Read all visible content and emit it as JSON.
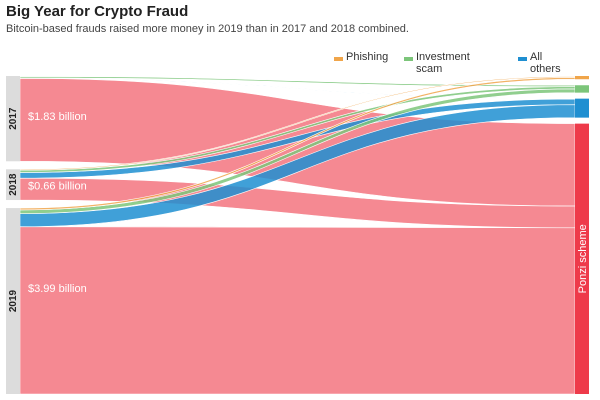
{
  "chart_data": {
    "type": "sankey",
    "title": "Big Year for Crypto Fraud",
    "subtitle": "Bitcoin-based frauds raised more money in 2019 than in 2017 and 2018 combined.",
    "unit": "billion",
    "sources": [
      {
        "name": "2017",
        "value_label": "$1.83 billion",
        "value": 1.83
      },
      {
        "name": "2018",
        "value_label": "$0.66 billion",
        "value": 0.66
      },
      {
        "name": "2019",
        "value_label": "$3.99 billion",
        "value": 3.99
      }
    ],
    "targets": [
      {
        "name": "Phishing",
        "color": "#f0a54a"
      },
      {
        "name": "Investment scam",
        "color": "#7cc57a"
      },
      {
        "name": "All others",
        "color": "#1f8fd1"
      },
      {
        "name": "Ponzi scheme",
        "color": "#ee3a4a"
      }
    ],
    "flows": [
      {
        "source": "2017",
        "target": "Phishing",
        "value": 0.01
      },
      {
        "source": "2017",
        "target": "Investment scam",
        "value": 0.03
      },
      {
        "source": "2017",
        "target": "Ponzi scheme",
        "value": 1.78
      },
      {
        "source": "2017",
        "target": "All others",
        "value": 0.01
      },
      {
        "source": "2018",
        "target": "Phishing",
        "value": 0.02
      },
      {
        "source": "2018",
        "target": "Investment scam",
        "value": 0.05
      },
      {
        "source": "2018",
        "target": "Ponzi scheme",
        "value": 0.47
      },
      {
        "source": "2018",
        "target": "All others",
        "value": 0.12
      },
      {
        "source": "2019",
        "target": "Phishing",
        "value": 0.04
      },
      {
        "source": "2019",
        "target": "Investment scam",
        "value": 0.08
      },
      {
        "source": "2019",
        "target": "Ponzi scheme",
        "value": 3.59
      },
      {
        "source": "2019",
        "target": "All others",
        "value": 0.28
      }
    ],
    "legend": {
      "placement": "top-right",
      "entries": [
        "Phishing",
        "Investment scam",
        "All others"
      ]
    }
  }
}
